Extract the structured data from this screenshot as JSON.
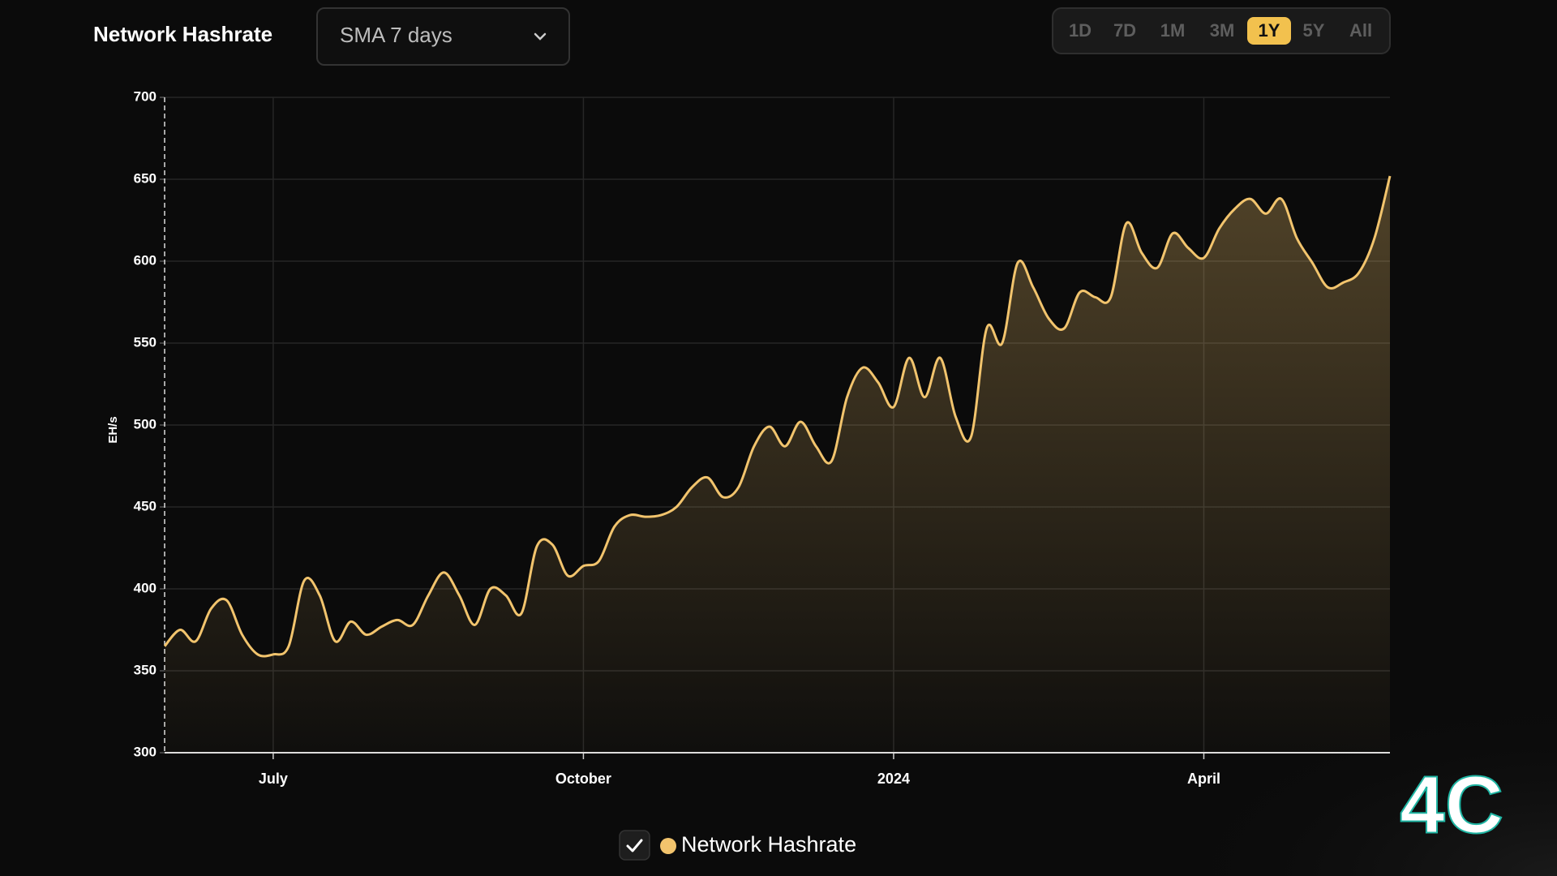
{
  "chart_data": {
    "type": "line",
    "title": "Network Hashrate",
    "ylabel": "EH/s",
    "categories": [
      null,
      null,
      null,
      null,
      null,
      null,
      null,
      "July",
      null,
      null,
      null,
      null,
      null,
      null,
      null,
      null,
      null,
      null,
      null,
      null,
      null,
      null,
      null,
      null,
      null,
      null,
      null,
      "October",
      null,
      null,
      null,
      null,
      null,
      null,
      null,
      null,
      null,
      null,
      null,
      null,
      null,
      null,
      null,
      null,
      null,
      null,
      null,
      "2024",
      null,
      null,
      null,
      null,
      null,
      null,
      null,
      null,
      null,
      null,
      null,
      null,
      null,
      null,
      null,
      null,
      null,
      null,
      null,
      "April",
      null,
      null,
      null,
      null,
      null,
      null,
      null,
      null,
      null,
      null,
      null,
      null
    ],
    "series": [
      {
        "name": "Network Hashrate",
        "color": "#f2c46d",
        "values": [
          365,
          375,
          368,
          388,
          393,
          372,
          360,
          360,
          365,
          405,
          396,
          368,
          380,
          372,
          377,
          381,
          378,
          396,
          410,
          396,
          378,
          400,
          396,
          385,
          426,
          427,
          408,
          414,
          417,
          438,
          445,
          444,
          445,
          450,
          462,
          468,
          456,
          462,
          487,
          499,
          487,
          502,
          487,
          478,
          517,
          535,
          526,
          511,
          541,
          517,
          541,
          505,
          493,
          559,
          550,
          599,
          584,
          565,
          559,
          581,
          578,
          578,
          623,
          605,
          596,
          617,
          608,
          602,
          620,
          632,
          638,
          629,
          638,
          614,
          599,
          584,
          587,
          593,
          614,
          652
        ]
      }
    ],
    "ylim": [
      300,
      700
    ],
    "yticks": [
      300,
      350,
      400,
      450,
      500,
      550,
      600,
      650,
      700
    ],
    "grid": true
  },
  "controls": {
    "dropdown": "SMA 7 days",
    "ranges": [
      "1D",
      "7D",
      "1M",
      "3M",
      "1Y",
      "5Y",
      "All"
    ],
    "selected_range": 4
  },
  "logo": "4C"
}
